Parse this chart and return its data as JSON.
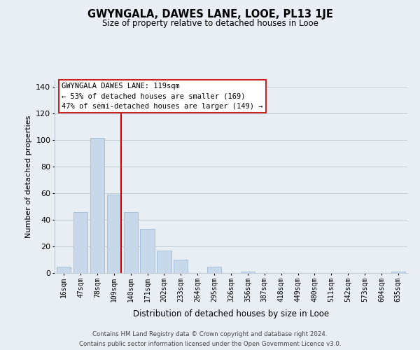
{
  "title1": "GWYNGALA, DAWES LANE, LOOE, PL13 1JE",
  "title2": "Size of property relative to detached houses in Looe",
  "xlabel": "Distribution of detached houses by size in Looe",
  "ylabel": "Number of detached properties",
  "bar_labels": [
    "16sqm",
    "47sqm",
    "78sqm",
    "109sqm",
    "140sqm",
    "171sqm",
    "202sqm",
    "233sqm",
    "264sqm",
    "295sqm",
    "326sqm",
    "356sqm",
    "387sqm",
    "418sqm",
    "449sqm",
    "480sqm",
    "511sqm",
    "542sqm",
    "573sqm",
    "604sqm",
    "635sqm"
  ],
  "bar_values": [
    5,
    46,
    102,
    59,
    46,
    33,
    17,
    10,
    0,
    5,
    0,
    1,
    0,
    0,
    0,
    0,
    0,
    0,
    0,
    0,
    1
  ],
  "bar_color": "#c8d8eb",
  "bar_edge_color": "#a8c0d8",
  "vline_color": "#cc0000",
  "ylim": [
    0,
    145
  ],
  "yticks": [
    0,
    20,
    40,
    60,
    80,
    100,
    120,
    140
  ],
  "annotation_title": "GWYNGALA DAWES LANE: 119sqm",
  "annotation_line1": "← 53% of detached houses are smaller (169)",
  "annotation_line2": "47% of semi-detached houses are larger (149) →",
  "footer1": "Contains HM Land Registry data © Crown copyright and database right 2024.",
  "footer2": "Contains public sector information licensed under the Open Government Licence v3.0.",
  "background_color": "#e8eef4",
  "plot_bg_color": "#e8eef4",
  "grid_color": "#c0ccd8"
}
